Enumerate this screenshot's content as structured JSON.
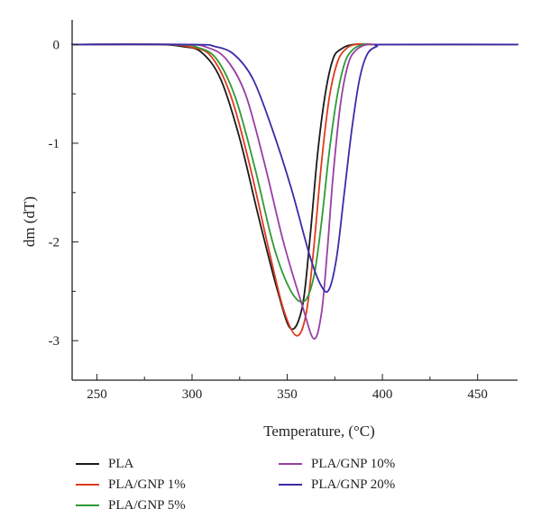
{
  "chart_data": {
    "type": "line",
    "title": "",
    "xlabel": "Temperature, (°C)",
    "ylabel": "dm (dT)",
    "xlim": [
      237,
      471
    ],
    "ylim": [
      -3.4,
      0.25
    ],
    "xticks": [
      250,
      300,
      350,
      400,
      450
    ],
    "yticks": [
      0,
      -1,
      -2,
      -3
    ],
    "grid": false,
    "legend_position": "bottom",
    "series": [
      {
        "name": "PLA",
        "color": "#1a1a1a",
        "x": [
          237,
          280,
          295,
          305,
          315,
          325,
          335,
          345,
          352,
          358,
          362,
          366,
          370,
          374,
          378,
          385,
          400,
          471
        ],
        "y": [
          0,
          0,
          -0.02,
          -0.08,
          -0.35,
          -0.95,
          -1.75,
          -2.5,
          -2.88,
          -2.65,
          -1.95,
          -1.1,
          -0.5,
          -0.15,
          -0.05,
          0,
          0,
          0
        ]
      },
      {
        "name": "PLA/GNP 1%",
        "color": "#e03a1e",
        "x": [
          237,
          285,
          300,
          310,
          320,
          330,
          340,
          348,
          355,
          360,
          364,
          368,
          372,
          376,
          380,
          386,
          400,
          471
        ],
        "y": [
          0,
          0,
          -0.03,
          -0.12,
          -0.5,
          -1.2,
          -2.05,
          -2.68,
          -2.95,
          -2.72,
          -2.05,
          -1.2,
          -0.55,
          -0.2,
          -0.06,
          0,
          0,
          0
        ]
      },
      {
        "name": "PLA/GNP 5%",
        "color": "#2e9a36",
        "x": [
          237,
          290,
          303,
          313,
          323,
          333,
          343,
          352,
          359,
          364,
          368,
          372,
          376,
          380,
          384,
          390,
          400,
          471
        ],
        "y": [
          0,
          0,
          -0.03,
          -0.15,
          -0.55,
          -1.25,
          -2.05,
          -2.5,
          -2.6,
          -2.35,
          -1.8,
          -1.1,
          -0.55,
          -0.2,
          -0.06,
          0,
          0,
          0
        ]
      },
      {
        "name": "PLA/GNP 10%",
        "color": "#9a3ea5",
        "x": [
          237,
          295,
          308,
          318,
          328,
          338,
          348,
          358,
          364,
          368,
          371,
          374,
          378,
          382,
          386,
          392,
          400,
          471
        ],
        "y": [
          0,
          0,
          -0.03,
          -0.15,
          -0.5,
          -1.2,
          -2.0,
          -2.65,
          -2.98,
          -2.72,
          -2.1,
          -1.35,
          -0.6,
          -0.2,
          -0.06,
          0,
          0,
          0
        ]
      },
      {
        "name": "PLA/GNP 20%",
        "color": "#3a2ba8",
        "x": [
          237,
          300,
          312,
          322,
          332,
          342,
          352,
          362,
          368,
          372,
          376,
          380,
          384,
          388,
          392,
          397,
          403,
          471
        ],
        "y": [
          0,
          0,
          -0.02,
          -0.1,
          -0.35,
          -0.85,
          -1.45,
          -2.15,
          -2.45,
          -2.48,
          -2.15,
          -1.5,
          -0.85,
          -0.35,
          -0.1,
          -0.02,
          0,
          0
        ]
      }
    ]
  }
}
